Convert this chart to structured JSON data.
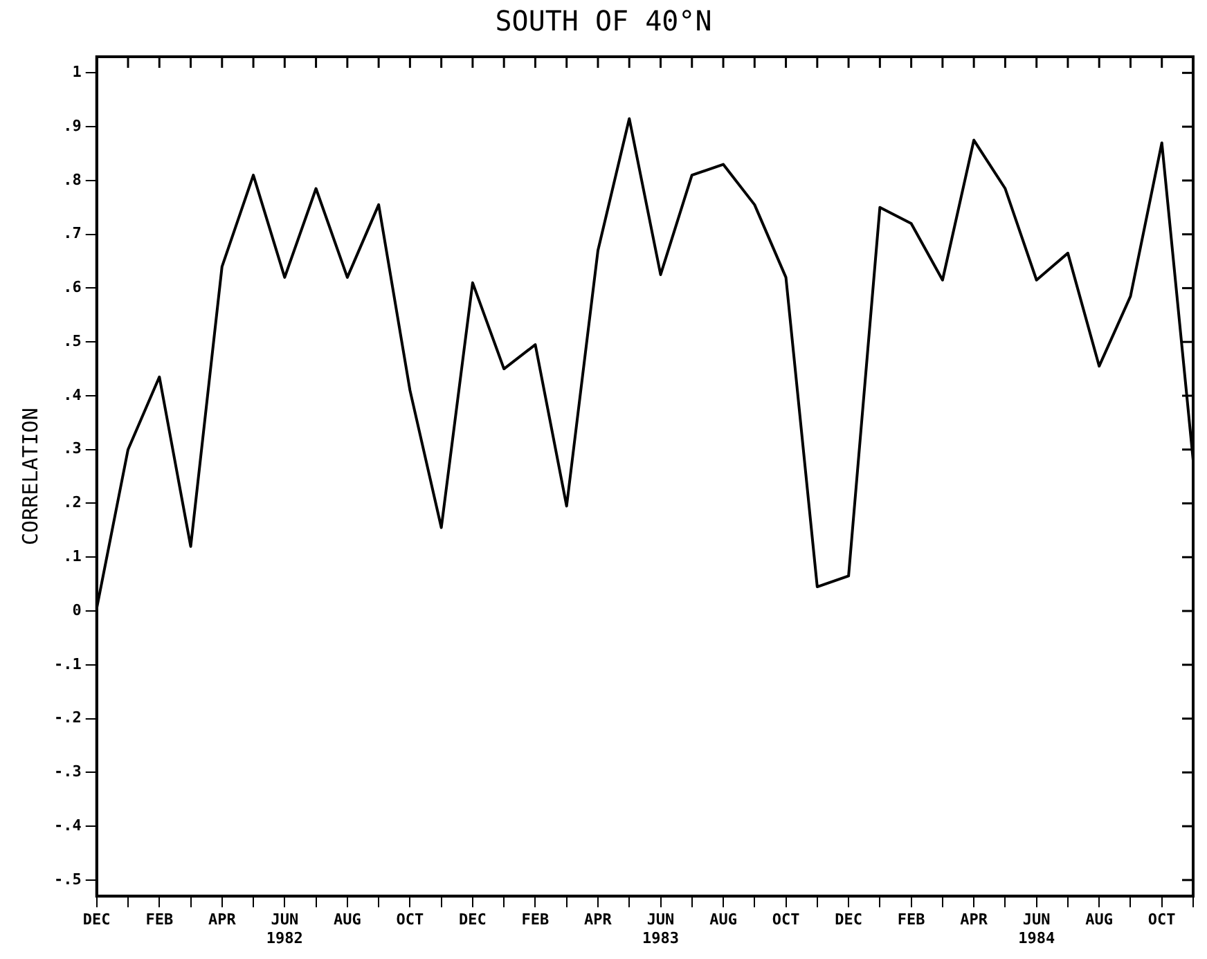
{
  "chart_data": {
    "type": "line",
    "title": "SOUTH OF 40°N",
    "ylabel": "CORRELATION",
    "categories": [
      "DEC",
      null,
      "FEB",
      null,
      "APR",
      null,
      "JUN\n1982",
      null,
      "AUG",
      null,
      "OCT",
      null,
      "DEC",
      null,
      "FEB",
      null,
      "APR",
      null,
      "JUN\n1983",
      null,
      "AUG",
      null,
      "OCT",
      null,
      "DEC",
      null,
      "FEB",
      null,
      "APR",
      null,
      "JUN\n1984",
      null,
      "AUG",
      null,
      "OCT",
      null
    ],
    "series": [
      {
        "color": "#000000",
        "values": [
          0.005,
          0.3,
          0.435,
          0.12,
          0.64,
          0.81,
          0.62,
          0.785,
          0.62,
          0.755,
          0.41,
          0.155,
          0.61,
          0.45,
          0.495,
          0.195,
          0.67,
          0.915,
          0.625,
          0.81,
          0.83,
          0.755,
          0.62,
          0.045,
          0.065,
          0.75,
          0.72,
          0.615,
          0.875,
          0.785,
          0.615,
          0.665,
          0.455,
          0.585,
          0.87,
          0.28
        ]
      }
    ],
    "ylim": [
      -0.53,
      1.03
    ],
    "yticks": [
      {
        "value": -0.5,
        "label": "-.5"
      },
      {
        "value": -0.4,
        "label": "-.4"
      },
      {
        "value": -0.3,
        "label": "-.3"
      },
      {
        "value": -0.2,
        "label": "-.2"
      },
      {
        "value": -0.1,
        "label": "-.1"
      },
      0,
      {
        "value": 0.1,
        "label": ".1"
      },
      {
        "value": 0.2,
        "label": ".2"
      },
      {
        "value": 0.3,
        "label": ".3"
      },
      {
        "value": 0.4,
        "label": ".4"
      },
      {
        "value": 0.5,
        "label": ".5"
      },
      {
        "value": 0.6,
        "label": ".6"
      },
      {
        "value": 0.7,
        "label": ".7"
      },
      {
        "value": 0.8,
        "label": ".8"
      },
      {
        "value": 0.9,
        "label": ".9"
      },
      1
    ],
    "grid": false,
    "legend": false,
    "marker": "none",
    "line_style": "solid"
  }
}
